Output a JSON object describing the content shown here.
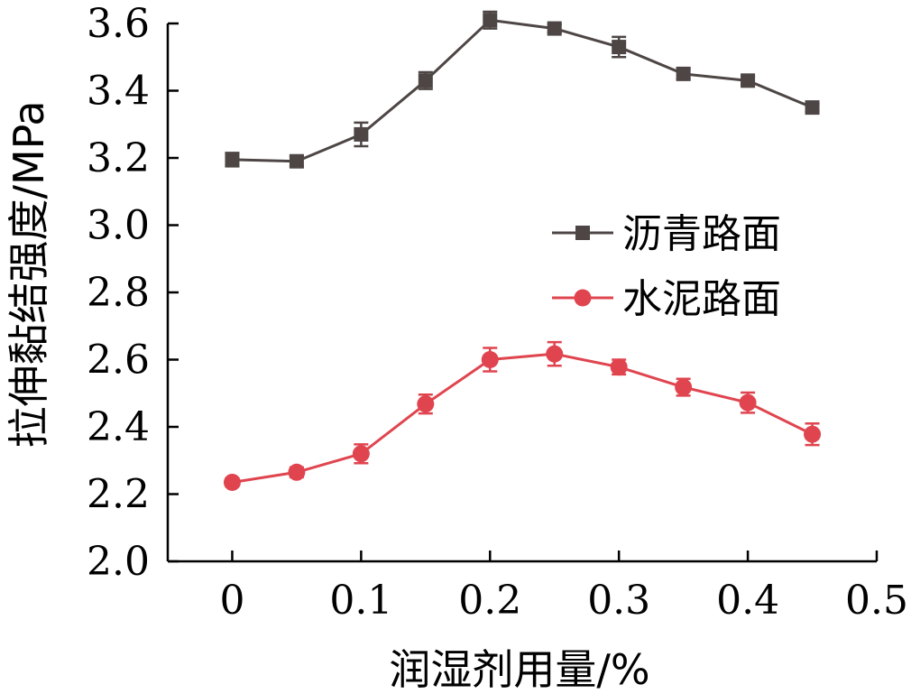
{
  "chart_data": {
    "type": "line",
    "title": "",
    "xlabel": "润湿剂用量/%",
    "ylabel": "拉伸黏结强度/MPa",
    "xlim": [
      -0.05,
      0.5
    ],
    "ylim": [
      2.0,
      3.6
    ],
    "xticks": [
      0,
      0.1,
      0.2,
      0.3,
      0.4,
      0.5
    ],
    "xtick_labels": [
      "0",
      "0.1",
      "0.2",
      "0.3",
      "0.4",
      "0.5"
    ],
    "yticks": [
      2.0,
      2.2,
      2.4,
      2.6,
      2.8,
      3.0,
      3.2,
      3.4,
      3.6
    ],
    "ytick_labels": [
      "2.0",
      "2.2",
      "2.4",
      "2.6",
      "2.8",
      "3.0",
      "3.2",
      "3.4",
      "3.6"
    ],
    "grid": false,
    "legend": "center-right",
    "x": [
      0,
      0.05,
      0.1,
      0.15,
      0.2,
      0.25,
      0.3,
      0.35,
      0.4,
      0.45
    ],
    "series": [
      {
        "name": "沥青路面",
        "marker": "square",
        "color": "#4d4644",
        "values": [
          3.195,
          3.19,
          3.27,
          3.43,
          3.61,
          3.585,
          3.53,
          3.45,
          3.43,
          3.35
        ],
        "errors": [
          0.02,
          0.015,
          0.035,
          0.025,
          0.025,
          0.012,
          0.03,
          0.015,
          0.012,
          0.012
        ]
      },
      {
        "name": "水泥路面",
        "marker": "circle",
        "color": "#e0454f",
        "values": [
          2.235,
          2.265,
          2.32,
          2.468,
          2.6,
          2.617,
          2.578,
          2.518,
          2.472,
          2.378
        ],
        "errors": [
          0.012,
          0.015,
          0.028,
          0.028,
          0.035,
          0.035,
          0.022,
          0.025,
          0.03,
          0.032
        ]
      }
    ]
  }
}
